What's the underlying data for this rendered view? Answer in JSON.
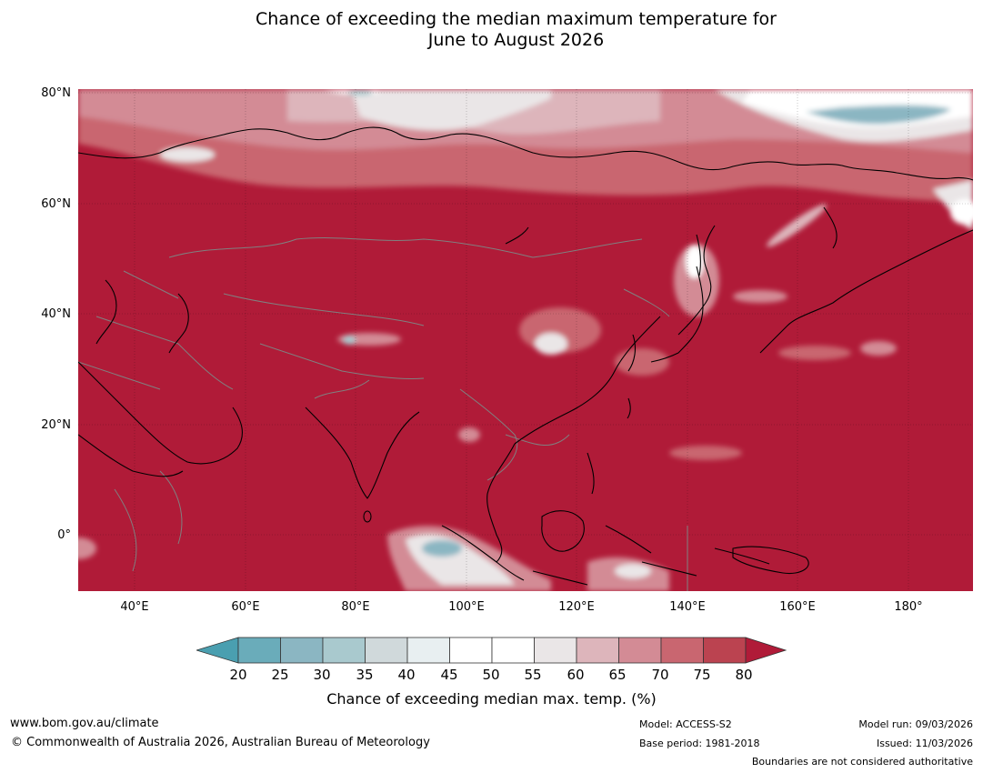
{
  "title": {
    "line1": "Chance of exceeding the median maximum temperature for",
    "line2": "June to August 2026"
  },
  "lat_labels": [
    "80°N",
    "60°N",
    "40°N",
    "20°N",
    "0°"
  ],
  "lon_labels": [
    "40°E",
    "60°E",
    "80°E",
    "100°E",
    "120°E",
    "140°E",
    "160°E",
    "180°"
  ],
  "colorbar": {
    "ticks": [
      "20",
      "25",
      "30",
      "35",
      "40",
      "45",
      "50",
      "55",
      "60",
      "65",
      "70",
      "75",
      "80"
    ],
    "colors": [
      "#6aacba",
      "#8bb6c2",
      "#a9c9ce",
      "#d0d9db",
      "#e8eff1",
      "#ffffff",
      "#ffffff",
      "#eae6e7",
      "#ddb5bb",
      "#d38b95",
      "#c96670",
      "#bb4350"
    ],
    "below_color": "#4a9fb0",
    "above_color": "#b01b38",
    "label": "Chance of exceeding median max. temp. (%)"
  },
  "map_colors": {
    "dominant": "#b01b38",
    "coast": "#000000",
    "border": "#808080"
  },
  "footer": {
    "url": "www.bom.gov.au/climate",
    "copyright": "© Commonwealth of Australia 2026, Australian Bureau of Meteorology",
    "model": "Model: ACCESS-S2",
    "base_period": "Base period: 1981-2018",
    "model_run": "Model run: 09/03/2026",
    "issued": "Issued: 11/03/2026",
    "boundaries": "Boundaries are not considered authoritative"
  }
}
